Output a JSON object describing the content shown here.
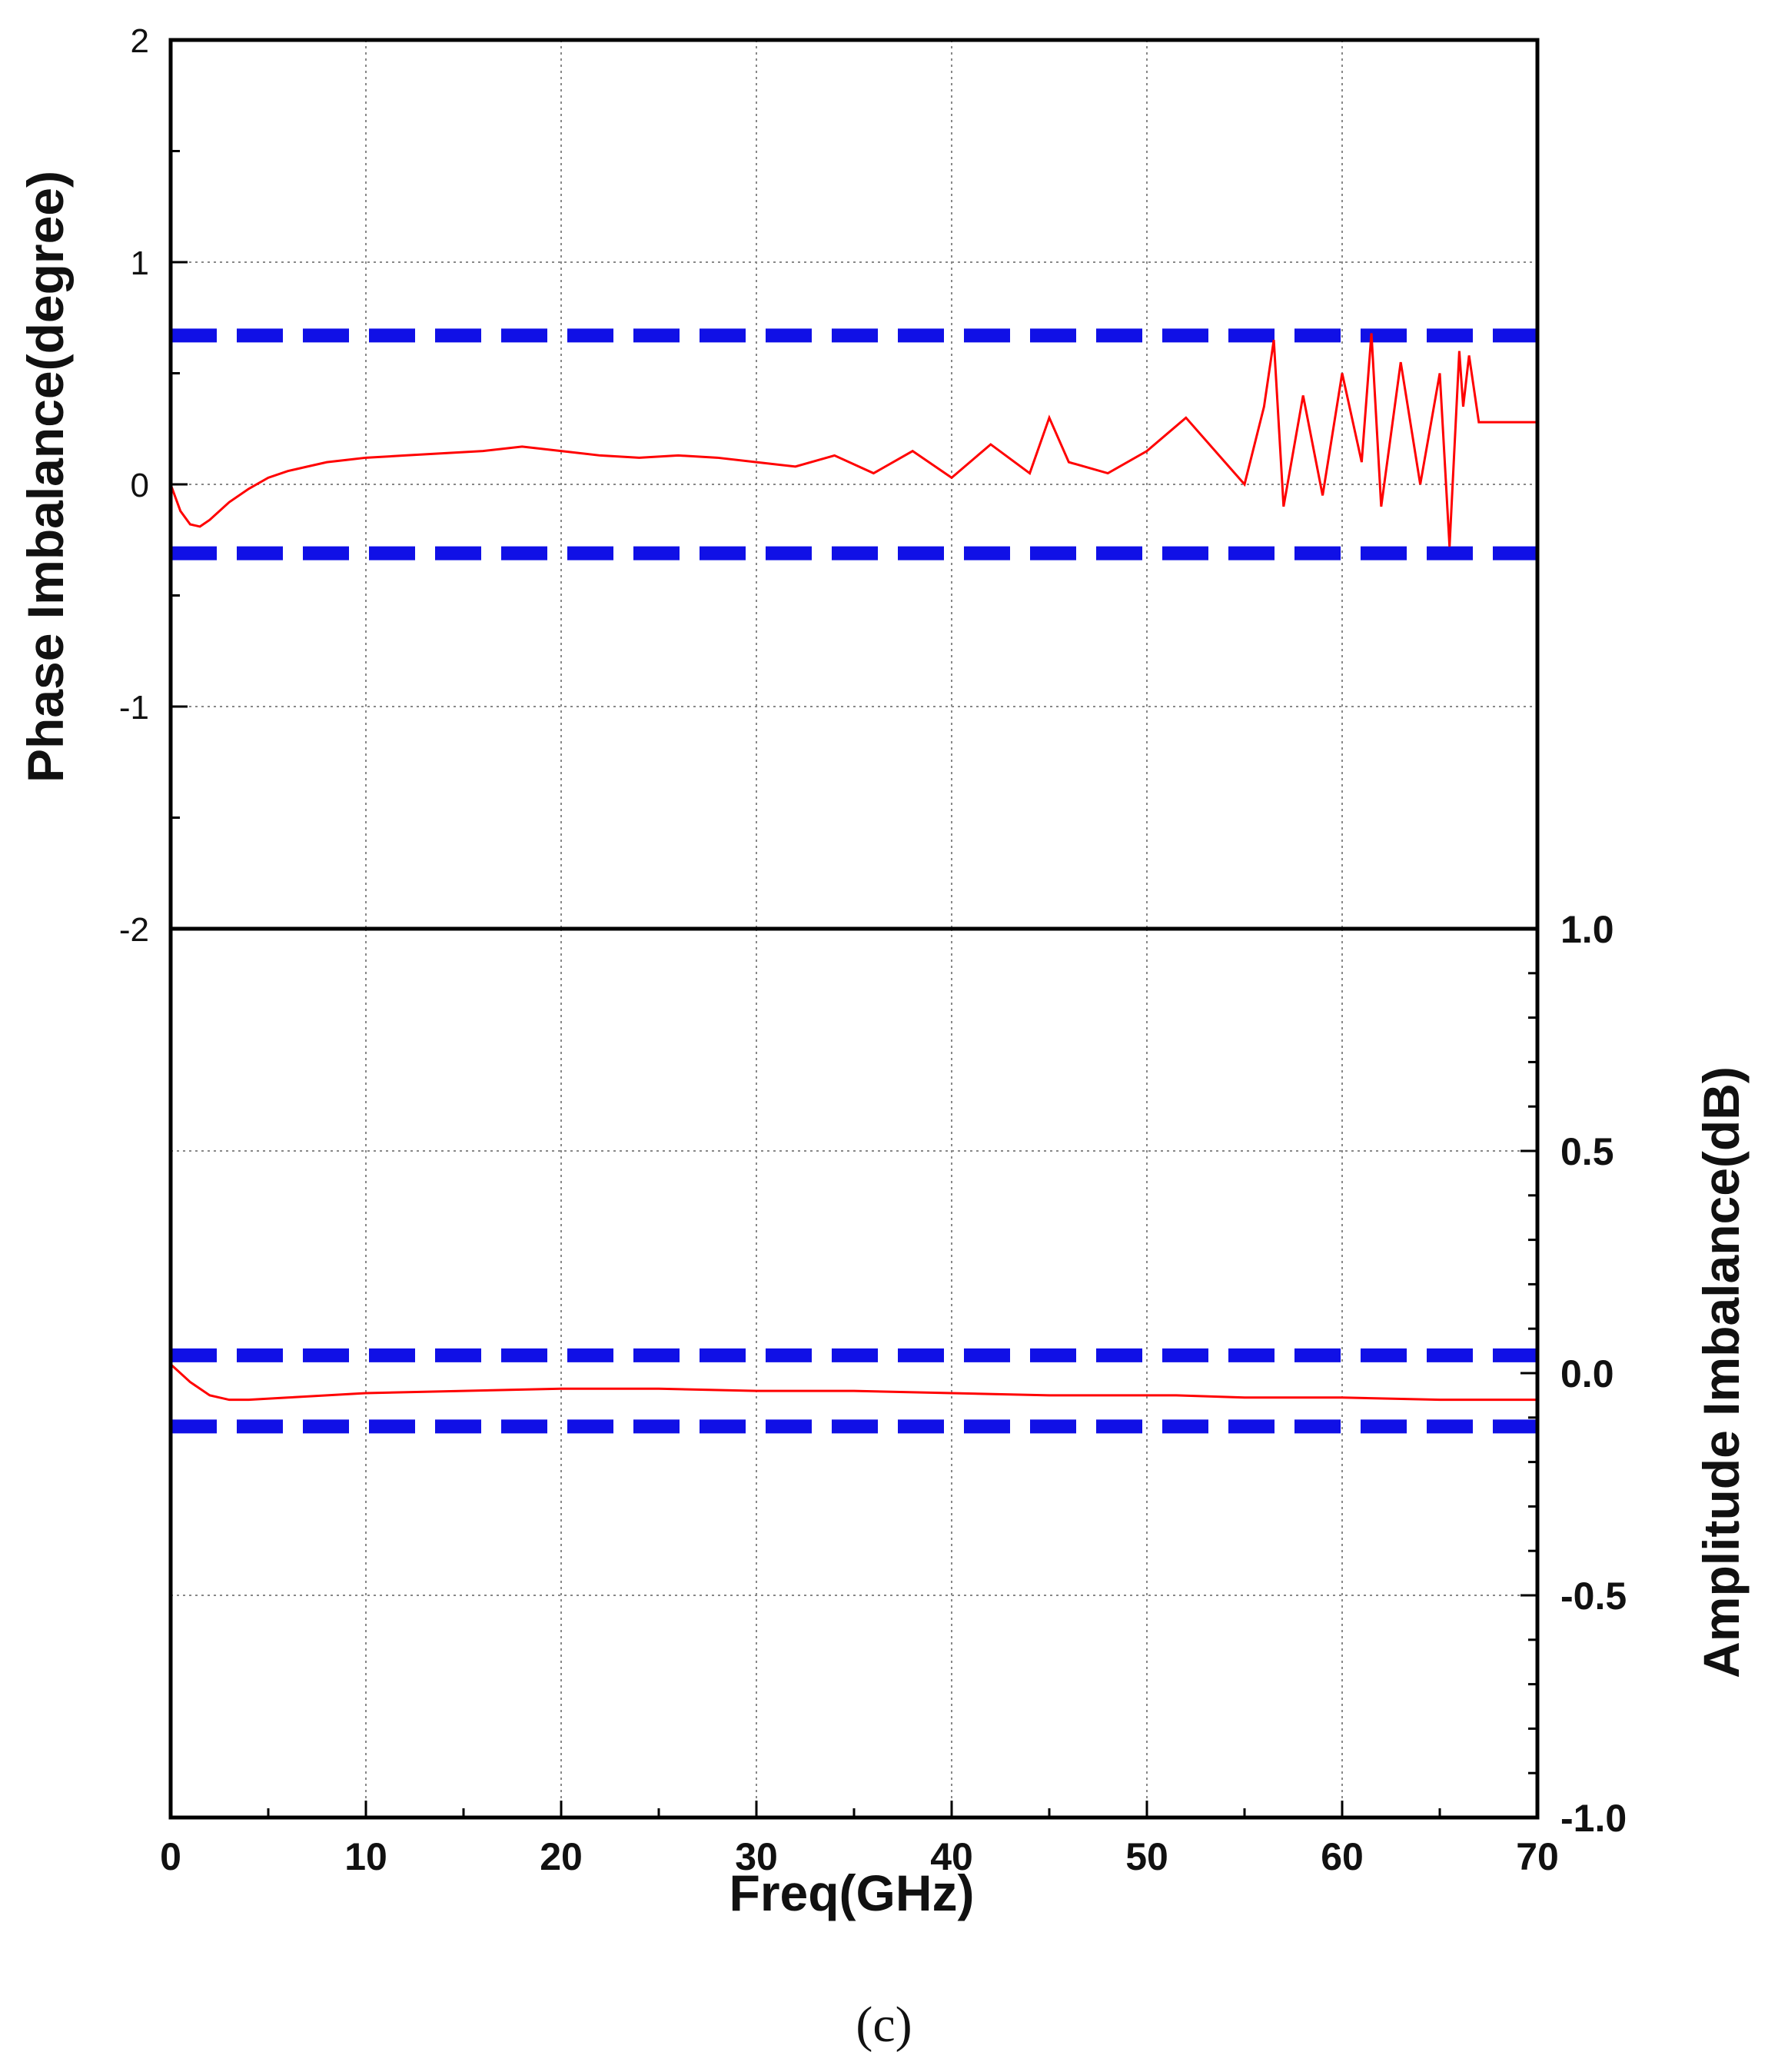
{
  "caption": "(c)",
  "colors": {
    "series": "#ff0000",
    "limits": "#1010e6",
    "frame": "#000000",
    "grid": "#888888"
  },
  "chart_data": [
    {
      "type": "line",
      "panel": "top",
      "ylabel": "Phase Imbalance(degree)",
      "y_axis_side": "left",
      "ylim": [
        -2,
        2
      ],
      "yticks": [
        2,
        1,
        0,
        -1,
        -2
      ],
      "ytick_labels": [
        "2",
        "1",
        "0",
        "-1",
        "-2"
      ],
      "xlim": [
        0,
        70
      ],
      "grid": true,
      "limit_lines": [
        0.67,
        -0.31
      ],
      "series": [
        {
          "x": [
            0,
            0.5,
            1,
            1.5,
            2,
            3,
            4,
            5,
            6,
            7,
            8,
            9,
            10,
            12,
            14,
            16,
            17,
            18,
            20,
            22,
            24,
            26,
            28,
            30,
            32,
            34,
            36,
            38,
            40,
            42,
            44,
            45,
            46,
            48,
            50,
            52,
            54,
            55,
            56,
            56.5,
            57,
            58,
            59,
            60,
            61,
            61.5,
            62,
            63,
            64,
            65,
            65.5,
            66,
            66.2,
            66.5,
            67,
            68,
            69,
            70
          ],
          "y": [
            0,
            -0.12,
            -0.18,
            -0.19,
            -0.16,
            -0.08,
            -0.02,
            0.03,
            0.06,
            0.08,
            0.1,
            0.11,
            0.12,
            0.13,
            0.14,
            0.15,
            0.16,
            0.17,
            0.15,
            0.13,
            0.12,
            0.13,
            0.12,
            0.1,
            0.08,
            0.13,
            0.05,
            0.15,
            0.03,
            0.18,
            0.05,
            0.3,
            0.1,
            0.05,
            0.15,
            0.3,
            0.1,
            0.0,
            0.35,
            0.65,
            -0.1,
            0.4,
            -0.05,
            0.5,
            0.1,
            0.68,
            -0.1,
            0.55,
            0.0,
            0.5,
            -0.28,
            0.6,
            0.35,
            0.58,
            0.28,
            0.28,
            0.28,
            0.28
          ]
        }
      ]
    },
    {
      "type": "line",
      "panel": "bottom",
      "xlabel": "Freq(GHz)",
      "ylabel": "Amplitude Imbalance(dB)",
      "y_axis_side": "right",
      "ylim": [
        -1.0,
        1.0
      ],
      "yticks": [
        1.0,
        0.5,
        0.0,
        -0.5,
        -1.0
      ],
      "ytick_labels": [
        "1.0",
        "0.5",
        "0.0",
        "-0.5",
        "-1.0"
      ],
      "xlim": [
        0,
        70
      ],
      "xticks": [
        0,
        10,
        20,
        30,
        40,
        50,
        60,
        70
      ],
      "xtick_labels": [
        "0",
        "10",
        "20",
        "30",
        "40",
        "50",
        "60",
        "70"
      ],
      "grid": true,
      "limit_lines": [
        0.04,
        -0.12
      ],
      "series": [
        {
          "x": [
            0,
            1,
            2,
            3,
            4,
            6,
            8,
            10,
            15,
            20,
            25,
            30,
            35,
            40,
            45,
            50,
            51.5,
            55,
            60,
            65,
            67,
            68,
            69,
            70
          ],
          "y": [
            0.02,
            -0.02,
            -0.05,
            -0.06,
            -0.06,
            -0.055,
            -0.05,
            -0.045,
            -0.04,
            -0.035,
            -0.035,
            -0.04,
            -0.04,
            -0.045,
            -0.05,
            -0.05,
            -0.05,
            -0.055,
            -0.055,
            -0.06,
            -0.06,
            -0.06,
            -0.06,
            -0.06
          ]
        }
      ]
    }
  ]
}
